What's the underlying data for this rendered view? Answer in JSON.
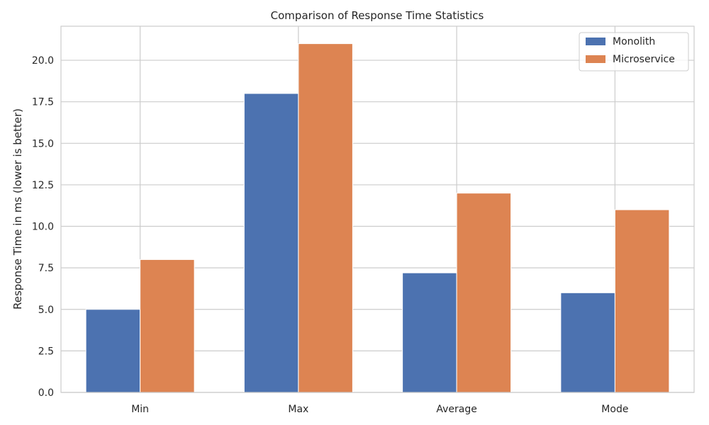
{
  "chart_data": {
    "type": "bar",
    "title": "Comparison of Response Time Statistics",
    "xlabel": "",
    "ylabel": "Response Time in ms (lower is better)",
    "categories": [
      "Min",
      "Max",
      "Average",
      "Mode"
    ],
    "series": [
      {
        "name": "Monolith",
        "values": [
          5,
          18,
          7.2,
          6
        ],
        "color": "#4c72b0"
      },
      {
        "name": "Microservice",
        "values": [
          8,
          21,
          12,
          11
        ],
        "color": "#dd8452"
      }
    ],
    "ylim": [
      0,
      22.05
    ],
    "yticks": [
      "0.0",
      "2.5",
      "5.0",
      "7.5",
      "10.0",
      "12.5",
      "15.0",
      "17.5",
      "20.0"
    ],
    "grid": true,
    "legend_position": "top-right"
  }
}
